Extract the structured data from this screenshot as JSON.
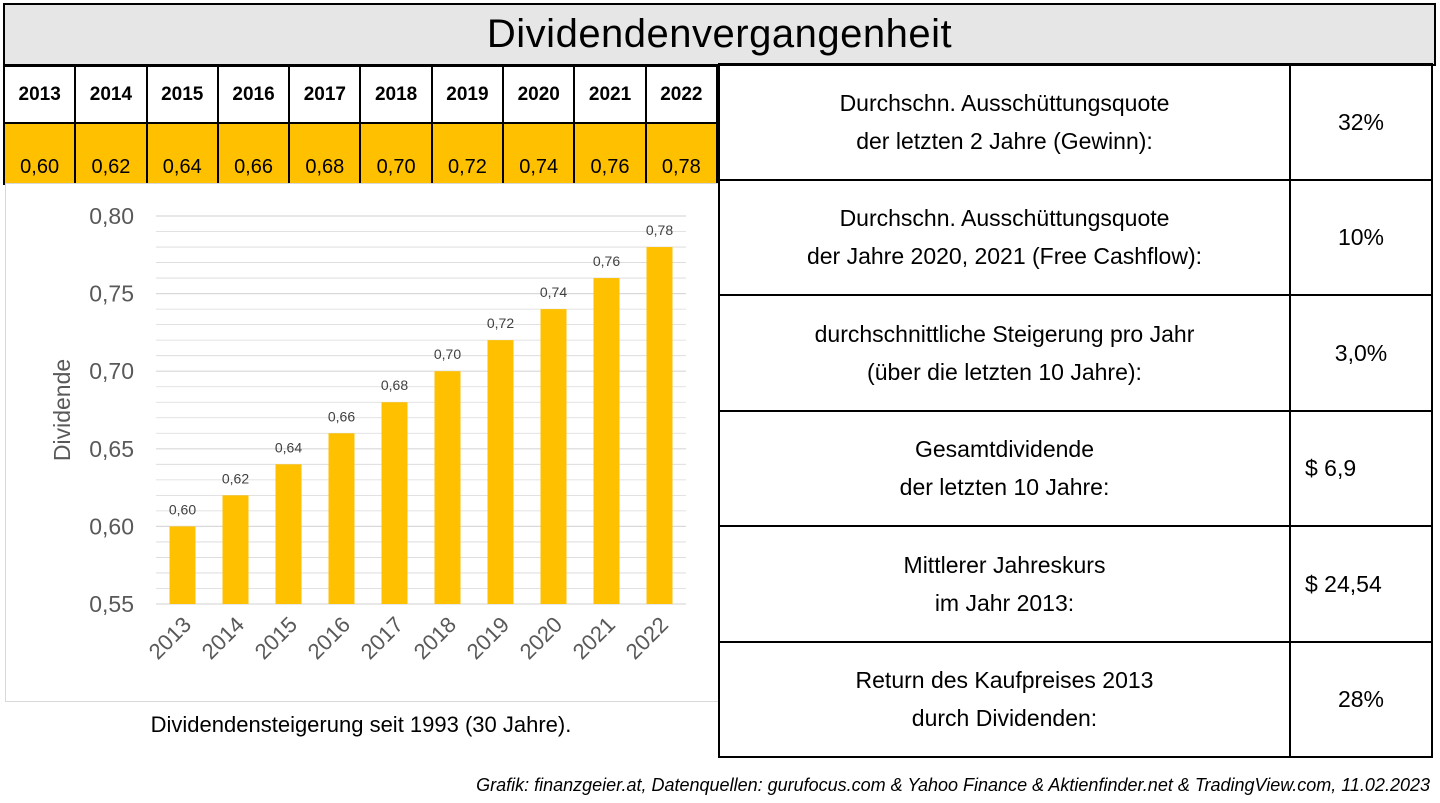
{
  "title": "Dividendenvergangenheit",
  "table": {
    "years": [
      "2013",
      "2014",
      "2015",
      "2016",
      "2017",
      "2018",
      "2019",
      "2020",
      "2021",
      "2022"
    ],
    "values": [
      "0,60",
      "0,62",
      "0,64",
      "0,66",
      "0,68",
      "0,70",
      "0,72",
      "0,74",
      "0,76",
      "0,78"
    ]
  },
  "chart_data": {
    "type": "bar",
    "categories": [
      "2013",
      "2014",
      "2015",
      "2016",
      "2017",
      "2018",
      "2019",
      "2020",
      "2021",
      "2022"
    ],
    "values": [
      0.6,
      0.62,
      0.64,
      0.66,
      0.68,
      0.7,
      0.72,
      0.74,
      0.76,
      0.78
    ],
    "data_labels": [
      "0,60",
      "0,62",
      "0,64",
      "0,66",
      "0,68",
      "0,70",
      "0,72",
      "0,74",
      "0,76",
      "0,78"
    ],
    "ylabel": "Dividende",
    "ylim": [
      0.55,
      0.8
    ],
    "yticks": [
      "0,55",
      "0,60",
      "0,65",
      "0,70",
      "0,75",
      "0,80"
    ],
    "grid": true,
    "bar_color": "#ffc000",
    "grid_color": "#d9d9d9"
  },
  "caption": "Dividendensteigerung seit 1993 (30 Jahre).",
  "stats": [
    {
      "label_1": "Durchschn. Ausschüttungsquote",
      "label_2": "der letzten 2 Jahre (Gewinn):",
      "value": "32%"
    },
    {
      "label_1": "Durchschn. Ausschüttungsquote",
      "label_2": "der Jahre 2020, 2021 (Free Cashflow):",
      "value": "10%"
    },
    {
      "label_1": "durchschnittliche Steigerung pro Jahr",
      "label_2": "(über die letzten 10 Jahre):",
      "value": "3,0%"
    },
    {
      "label_1": "Gesamtdividende",
      "label_2": "der letzten 10 Jahre:",
      "value": "$ 6,9"
    },
    {
      "label_1": "Mittlerer Jahreskurs",
      "label_2": "im Jahr 2013:",
      "value": "$ 24,54"
    },
    {
      "label_1": "Return des Kaufpreises 2013",
      "label_2": "durch Dividenden:",
      "value": "28%"
    }
  ],
  "footer": "Grafik: finanzgeier.at, Datenquellen: gurufocus.com & Yahoo Finance & Aktienfinder.net & TradingView.com, 11.02.2023"
}
